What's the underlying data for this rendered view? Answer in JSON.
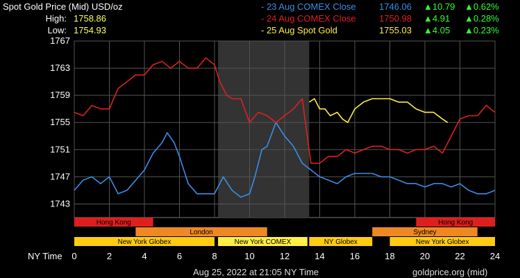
{
  "header": {
    "title": "Spot Gold Price (Mid) USD/oz",
    "high_label": "High:",
    "high_value": "1758.86",
    "low_label": "Low:",
    "low_value": "1754.93"
  },
  "legend": [
    {
      "name": "- 23 Aug COMEX Close",
      "value": "1746.06",
      "change": "▲10.79",
      "pct": "▲0.62%",
      "color": "#3a8ee8"
    },
    {
      "name": "- 24 Aug COMEX Close",
      "value": "1750.98",
      "change": "▲4.91",
      "pct": "▲0.28%",
      "color": "#e02020"
    },
    {
      "name": "- 25 Aug Spot Gold",
      "value": "1755.03",
      "change": "▲4.05",
      "pct": "▲0.23%",
      "color": "#ffee44"
    }
  ],
  "footer": {
    "timestamp": "Aug 25, 2022 at 21:05 NY Time",
    "source": "goldprice.org (mid)"
  },
  "chart_data": {
    "type": "line",
    "xlabel": "NY Time",
    "xlim": [
      0,
      24
    ],
    "ylim": [
      1741,
      1767
    ],
    "x_ticks": [
      "0",
      "2",
      "4",
      "6",
      "8",
      "10",
      "12",
      "14",
      "16",
      "18",
      "20",
      "22",
      "24"
    ],
    "y_ticks": [
      "1767",
      "1763",
      "1759",
      "1755",
      "1751",
      "1747",
      "1743"
    ],
    "shaded_range": [
      8.2,
      13.4
    ],
    "sessions": [
      {
        "row": 1,
        "label": "Hong Kong",
        "start": 0,
        "end": 4.5,
        "color": "#dd1f1f"
      },
      {
        "row": 1,
        "label": "Hong Kong",
        "start": 19.5,
        "end": 24,
        "color": "#dd1f1f"
      },
      {
        "row": 2,
        "label": "London",
        "start": 3.5,
        "end": 11,
        "color": "#ee8822"
      },
      {
        "row": 2,
        "label": "Sydney",
        "start": 17,
        "end": 23,
        "color": "#ee8822"
      },
      {
        "row": 3,
        "label": "New York Globex",
        "start": 0,
        "end": 8,
        "color": "#ffcc11"
      },
      {
        "row": 3,
        "label": "New York COMEX",
        "start": 8.2,
        "end": 13.3,
        "color": "#ffee44"
      },
      {
        "row": 3,
        "label": "NY Globex",
        "start": 13.4,
        "end": 17,
        "color": "#ffcc11"
      },
      {
        "row": 3,
        "label": "New York Globex",
        "start": 18,
        "end": 24,
        "color": "#ffcc11"
      }
    ],
    "series": [
      {
        "name": "23 Aug COMEX Close",
        "color": "#3a8ee8",
        "x": [
          0,
          0.5,
          1,
          1.5,
          2,
          2.5,
          3,
          3.5,
          4,
          4.5,
          5,
          5.3,
          5.7,
          6,
          6.5,
          7,
          7.5,
          8,
          8.5,
          9,
          9.5,
          10,
          10.3,
          10.7,
          11,
          11.5,
          12,
          12.5,
          13,
          13.5,
          14,
          14.5,
          15,
          15.5,
          16,
          16.5,
          17,
          17.5,
          18,
          18.5,
          19,
          19.5,
          20,
          20.5,
          21,
          21.5,
          22,
          22.5,
          23,
          23.5,
          24
        ],
        "values": [
          1745,
          1746.5,
          1747,
          1746,
          1747,
          1744.5,
          1745,
          1746.5,
          1748,
          1750.5,
          1752,
          1753.5,
          1752,
          1750,
          1746,
          1744.5,
          1744.5,
          1744.5,
          1747,
          1745,
          1744,
          1744.5,
          1747,
          1751,
          1751.5,
          1755,
          1753,
          1751.5,
          1749,
          1748,
          1747,
          1746.5,
          1746,
          1747,
          1747.5,
          1747.5,
          1747.5,
          1747,
          1747,
          1746.5,
          1746,
          1746,
          1745.5,
          1746,
          1746,
          1745.5,
          1746,
          1745,
          1744.5,
          1744.5,
          1745
        ]
      },
      {
        "name": "24 Aug COMEX Close",
        "color": "#e02020",
        "x": [
          0,
          0.5,
          1,
          1.5,
          2,
          2.5,
          3,
          3.5,
          4,
          4.5,
          5,
          5.5,
          6,
          6.5,
          7,
          7.5,
          8,
          8.3,
          8.7,
          9,
          9.5,
          10,
          10.5,
          11,
          11.5,
          12,
          12.5,
          13,
          13.5,
          14,
          14.5,
          15,
          15.5,
          16,
          16.5,
          17,
          17.5,
          18,
          18.5,
          19,
          19.5,
          20,
          20.5,
          21,
          21.5,
          22,
          22.5,
          23,
          23.5,
          24
        ],
        "values": [
          1756.5,
          1756,
          1757.5,
          1757,
          1757,
          1760,
          1761,
          1762,
          1762,
          1763.5,
          1764,
          1763,
          1764,
          1763,
          1763,
          1764.5,
          1763.5,
          1761,
          1759,
          1758.5,
          1758.5,
          1755,
          1756.5,
          1756,
          1755,
          1756,
          1757,
          1758.5,
          1749,
          1749,
          1750,
          1750,
          1751,
          1750.5,
          1751,
          1751.5,
          1751.5,
          1751,
          1751,
          1750.5,
          1751,
          1751,
          1751.5,
          1750.5,
          1753,
          1755.5,
          1756,
          1756,
          1757.5,
          1756.5
        ]
      },
      {
        "name": "25 Aug Spot Gold",
        "color": "#ffee44",
        "x": [
          13.4,
          13.7,
          14,
          14.3,
          14.6,
          15,
          15.3,
          15.6,
          16,
          16.5,
          17,
          17.5,
          18,
          18.5,
          19,
          19.5,
          20,
          20.5,
          21,
          21.3
        ],
        "values": [
          1758,
          1758.5,
          1757,
          1757,
          1756,
          1756.5,
          1755.5,
          1755,
          1757,
          1758,
          1758.5,
          1758.5,
          1758.5,
          1758,
          1758,
          1757,
          1756.5,
          1756.5,
          1755.5,
          1755
        ]
      }
    ]
  }
}
